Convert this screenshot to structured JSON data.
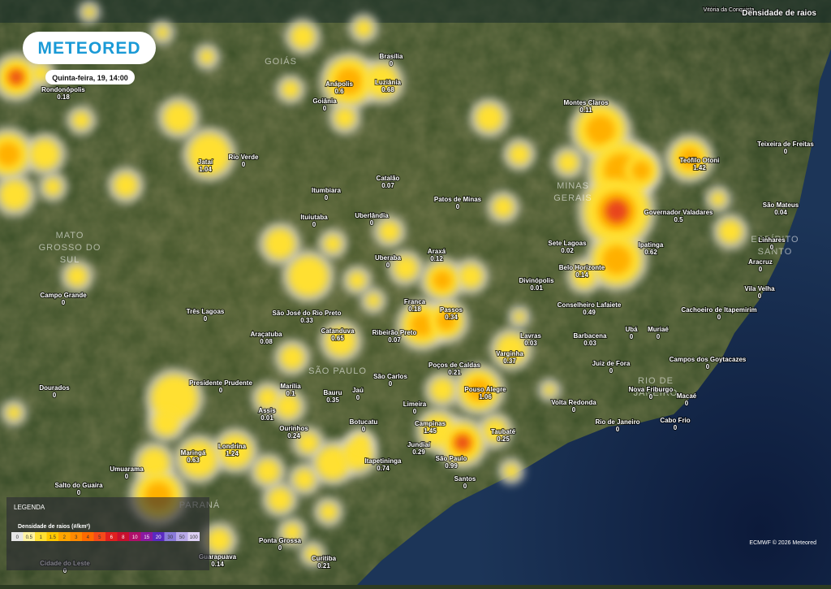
{
  "header": {
    "logo": "METEORED",
    "datetime": "Quinta-feira, 19, 14:00",
    "layer": "Densidade de raios",
    "place": "Vitória da Conquista"
  },
  "regions": [
    [
      "GOIÁS"
    ],
    [
      "MINAS",
      "GERAIS"
    ],
    [
      "MATO",
      "GROSSO DO",
      "SUL"
    ],
    [
      "ESPÍRITO",
      "SANTO"
    ],
    [
      "RIO DE",
      "JANEIRO"
    ],
    [
      "SÃO PAULO"
    ],
    [
      "PARANÁ"
    ]
  ],
  "cities": [
    {
      "name": "Rondonópolis",
      "value": "0.18"
    },
    {
      "name": "Brasília",
      "value": "0"
    },
    {
      "name": "Luziânia",
      "value": "0.68"
    },
    {
      "name": "Anápolis",
      "value": "0.6"
    },
    {
      "name": "Goiânia",
      "value": "0"
    },
    {
      "name": "Jataí",
      "value": "1.04"
    },
    {
      "name": "Rio Verde",
      "value": "0"
    },
    {
      "name": "Itumbiara",
      "value": "0"
    },
    {
      "name": "Catalão",
      "value": "0.07"
    },
    {
      "name": "Patos de Minas",
      "value": "0"
    },
    {
      "name": "Montes Claros",
      "value": "0.11"
    },
    {
      "name": "Teófilo Otoni",
      "value": "1.42"
    },
    {
      "name": "Governador Valadares",
      "value": "0.5"
    },
    {
      "name": "São Mateus",
      "value": "0.04"
    },
    {
      "name": "Teixeira de Freitas",
      "value": "0"
    },
    {
      "name": "Ituiutaba",
      "value": "0"
    },
    {
      "name": "Uberlândia",
      "value": "0"
    },
    {
      "name": "Uberaba",
      "value": "0"
    },
    {
      "name": "Araxá",
      "value": "0.12"
    },
    {
      "name": "Sete Lagoas",
      "value": "0.02"
    },
    {
      "name": "Ipatinga",
      "value": "0.62"
    },
    {
      "name": "Belo Horizonte",
      "value": "0.14"
    },
    {
      "name": "Divinópolis",
      "value": "0.01"
    },
    {
      "name": "Linhares",
      "value": "0"
    },
    {
      "name": "Aracruz",
      "value": "0"
    },
    {
      "name": "Vila Velha",
      "value": "0"
    },
    {
      "name": "Campo Grande",
      "value": "0"
    },
    {
      "name": "Franca",
      "value": "0.18"
    },
    {
      "name": "Passos",
      "value": "0.34"
    },
    {
      "name": "Três Lagoas",
      "value": "0"
    },
    {
      "name": "São José do Rio Preto",
      "value": "0.33"
    },
    {
      "name": "Conselheiro Lafaiete",
      "value": "0.49"
    },
    {
      "name": "Cachoeiro de Itapemirim",
      "value": "0"
    },
    {
      "name": "Araçatuba",
      "value": "0.08"
    },
    {
      "name": "Catanduva",
      "value": "0.65"
    },
    {
      "name": "Ribeirão Preto",
      "value": "0.07"
    },
    {
      "name": "Lavras",
      "value": "0.03"
    },
    {
      "name": "Barbacena",
      "value": "0.03"
    },
    {
      "name": "Ubá",
      "value": "0"
    },
    {
      "name": "Muriaé",
      "value": "0"
    },
    {
      "name": "Varginha",
      "value": "0.37"
    },
    {
      "name": "Juiz de Fora",
      "value": "0"
    },
    {
      "name": "Campos dos Goytacazes",
      "value": "0"
    },
    {
      "name": "Poços de Caldas",
      "value": "0.21"
    },
    {
      "name": "São Carlos",
      "value": "0"
    },
    {
      "name": "Presidente Prudente",
      "value": "0"
    },
    {
      "name": "Dourados",
      "value": "0"
    },
    {
      "name": "Marília",
      "value": "0.1"
    },
    {
      "name": "Bauru",
      "value": "0.35"
    },
    {
      "name": "Jaú",
      "value": "0"
    },
    {
      "name": "Pouso Alegre",
      "value": "1.06"
    },
    {
      "name": "Volta Redonda",
      "value": "0"
    },
    {
      "name": "Nova Friburgo",
      "value": "0"
    },
    {
      "name": "Macaé",
      "value": "0"
    },
    {
      "name": "Assis",
      "value": "0.01"
    },
    {
      "name": "Limeira",
      "value": "0"
    },
    {
      "name": "Ourinhos",
      "value": "0.24"
    },
    {
      "name": "Botucatu",
      "value": "0"
    },
    {
      "name": "Campinas",
      "value": "1.45"
    },
    {
      "name": "Rio de Janeiro",
      "value": "0"
    },
    {
      "name": "Cabo Frio",
      "value": "0"
    },
    {
      "name": "Taubaté",
      "value": "0.25"
    },
    {
      "name": "Jundiaí",
      "value": "0.29"
    },
    {
      "name": "Londrina",
      "value": "1.24"
    },
    {
      "name": "Maringá",
      "value": "0.63"
    },
    {
      "name": "Itapetininga",
      "value": "0.74"
    },
    {
      "name": "São Paulo",
      "value": "0.99"
    },
    {
      "name": "Umuarama",
      "value": "0"
    },
    {
      "name": "Salto do Guaíra",
      "value": "0"
    },
    {
      "name": "Santos",
      "value": "0"
    },
    {
      "name": "Ponta Grossa",
      "value": "0"
    },
    {
      "name": "Guarapuava",
      "value": "0.14"
    },
    {
      "name": "Curitiba",
      "value": "0.21"
    },
    {
      "name": "Cidade do Leste",
      "value": "0"
    }
  ],
  "legend": {
    "title": "LEGENDA",
    "subtitle": "Densidade de raios (#/km²)",
    "items": [
      {
        "label": "0",
        "color": "#e6e6e6"
      },
      {
        "label": "0.5",
        "color": "#fff3a0"
      },
      {
        "label": "1",
        "color": "#ffe033"
      },
      {
        "label": "1.5",
        "color": "#ffc800"
      },
      {
        "label": "2",
        "color": "#ffa500"
      },
      {
        "label": "3",
        "color": "#ff8a00"
      },
      {
        "label": "4",
        "color": "#ff6a00"
      },
      {
        "label": "5",
        "color": "#f44a1a"
      },
      {
        "label": "6",
        "color": "#e0201f"
      },
      {
        "label": "8",
        "color": "#c8102e"
      },
      {
        "label": "10",
        "color": "#b0106a"
      },
      {
        "label": "15",
        "color": "#8a1aa0"
      },
      {
        "label": "20",
        "color": "#5a2ac0"
      },
      {
        "label": "30",
        "color": "#8a7ad8"
      },
      {
        "label": "50",
        "color": "#b8a8e8"
      },
      {
        "label": "100",
        "color": "#ddd0f4"
      }
    ]
  },
  "credit": "ECMWF © 2026 Meteored"
}
